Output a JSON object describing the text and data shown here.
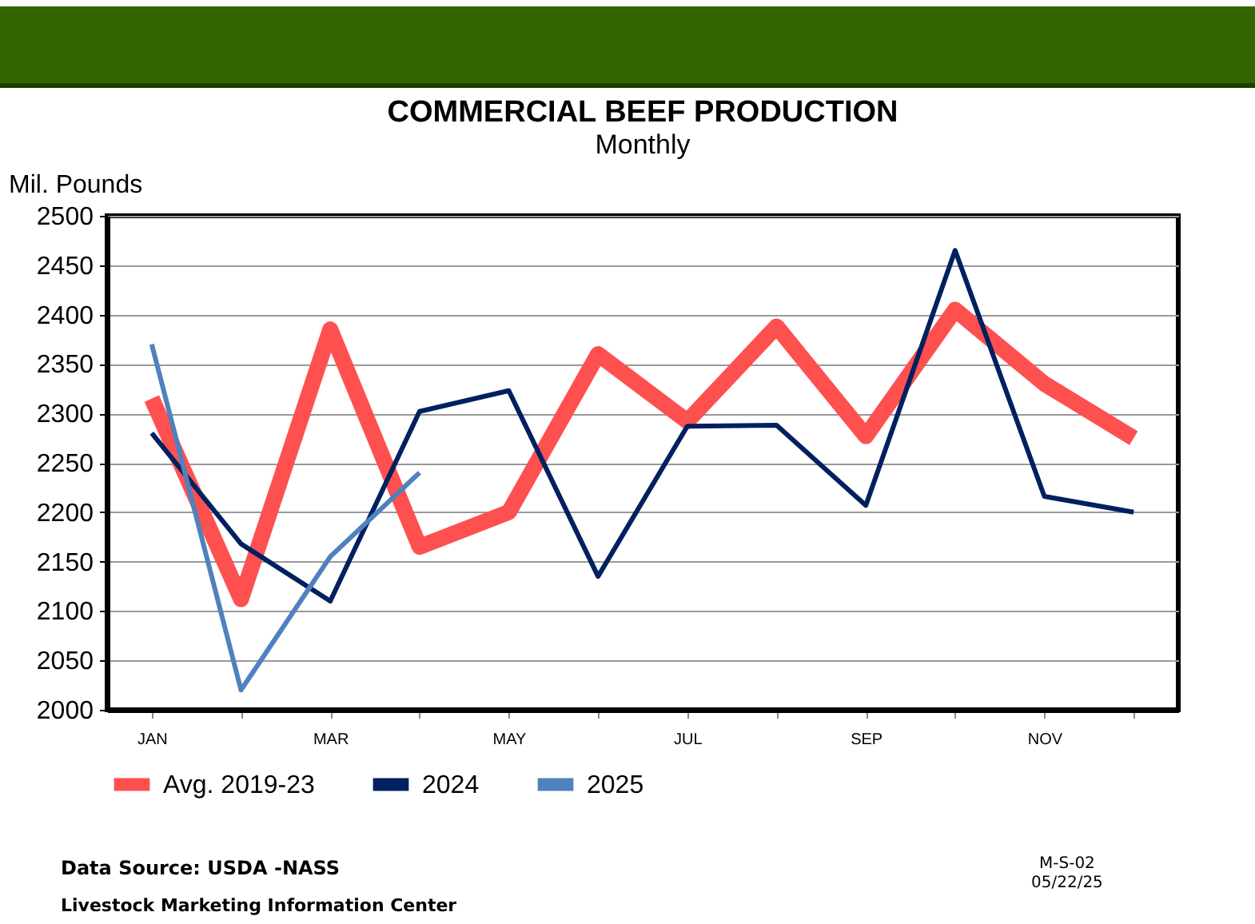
{
  "chart_data": {
    "type": "line",
    "title": "COMMERCIAL BEEF PRODUCTION",
    "subtitle": "Monthly",
    "ylabel": "Mil. Pounds",
    "categories": [
      "JAN",
      null,
      "MAR",
      null,
      "MAY",
      null,
      "JUL",
      null,
      "SEP",
      null,
      "NOV",
      null
    ],
    "series": [
      {
        "name": "Avg. 2019-23",
        "color": "#ff5050",
        "values": [
          2315,
          2112,
          2385,
          2165,
          2200,
          2360,
          2292,
          2388,
          2277,
          2405,
          2330,
          2275
        ]
      },
      {
        "name": "2024",
        "color": "#002060",
        "values": [
          2280,
          2168,
          2110,
          2302,
          2323,
          2135,
          2287,
          2288,
          2207,
          2465,
          2216,
          2200
        ]
      },
      {
        "name": "2025",
        "color": "#4f81bd",
        "values": [
          2370,
          2020,
          2155,
          2240,
          null,
          null,
          null,
          null,
          null,
          null,
          null,
          null
        ]
      }
    ],
    "ylim": [
      2000,
      2500
    ],
    "yticks": [
      2000,
      2050,
      2100,
      2150,
      2200,
      2250,
      2300,
      2350,
      2400,
      2450,
      2500
    ],
    "grid": "y",
    "legend": "bottom",
    "marker": "none",
    "line_style": "solid",
    "annotations": [
      "Data Source: USDA -NASS",
      "Livestock Marketing Information Center",
      "M-S-02",
      "05/22/25"
    ]
  }
}
